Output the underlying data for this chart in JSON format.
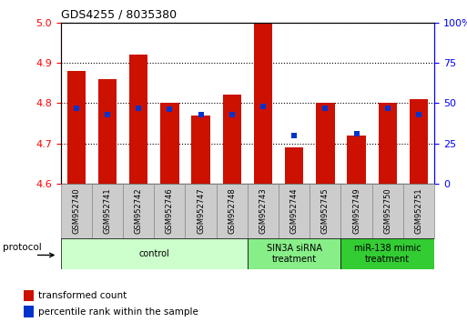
{
  "title": "GDS4255 / 8035380",
  "samples": [
    "GSM952740",
    "GSM952741",
    "GSM952742",
    "GSM952746",
    "GSM952747",
    "GSM952748",
    "GSM952743",
    "GSM952744",
    "GSM952745",
    "GSM952749",
    "GSM952750",
    "GSM952751"
  ],
  "red_values": [
    4.88,
    4.86,
    4.92,
    4.8,
    4.77,
    4.82,
    5.0,
    4.69,
    4.8,
    4.72,
    4.8,
    4.81
  ],
  "blue_percentiles": [
    47,
    43,
    47,
    46,
    43,
    43,
    48,
    30,
    47,
    31,
    47,
    43
  ],
  "y_min": 4.6,
  "y_max": 5.0,
  "y_ticks": [
    4.6,
    4.7,
    4.8,
    4.9,
    5.0
  ],
  "y2_min": 0,
  "y2_max": 100,
  "y2_ticks": [
    0,
    25,
    50,
    75,
    100
  ],
  "bar_color": "#cc1100",
  "dot_color": "#0033cc",
  "protocol_groups": [
    {
      "label": "control",
      "start": 0,
      "end": 6,
      "color": "#ccffcc"
    },
    {
      "label": "SIN3A siRNA\ntreatment",
      "start": 6,
      "end": 9,
      "color": "#88ee88"
    },
    {
      "label": "miR-138 mimic\ntreatment",
      "start": 9,
      "end": 12,
      "color": "#33cc33"
    }
  ],
  "legend_red": "transformed count",
  "legend_blue": "percentile rank within the sample",
  "bar_width": 0.6,
  "xlim_left": -0.5,
  "xlim_right": 11.5
}
